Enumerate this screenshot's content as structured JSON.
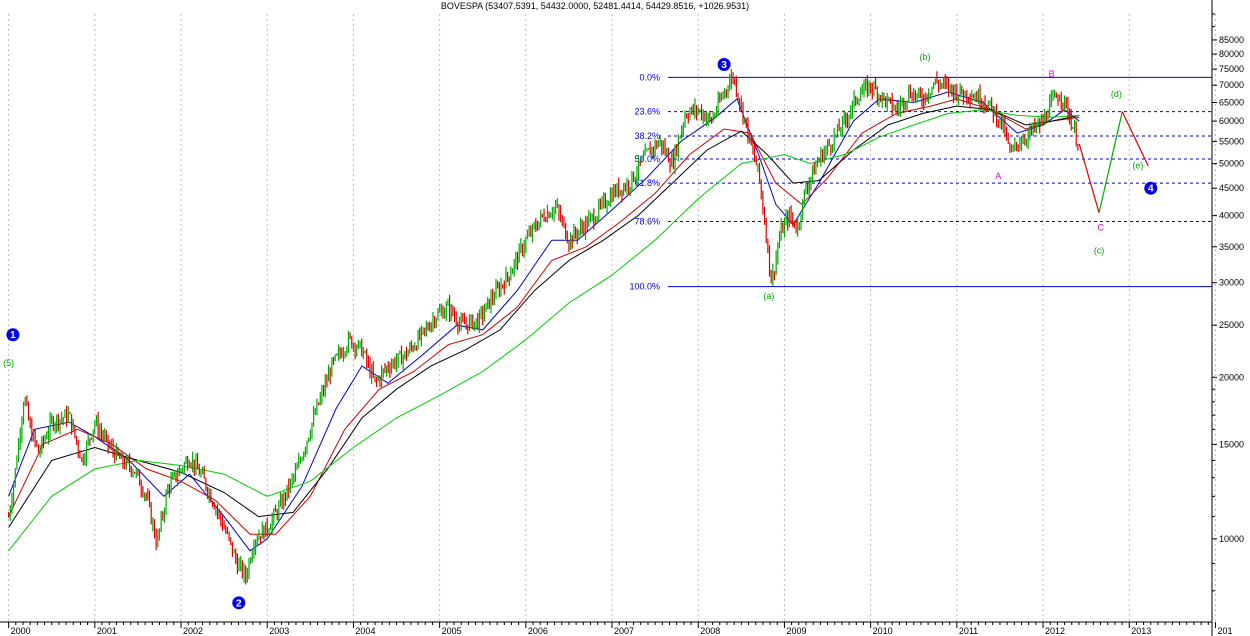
{
  "chart_data": {
    "type": "line",
    "title": "BOVESPA (53407.5391, 54432.0000, 52481.4414, 54429.8516, +1026.9531)",
    "y_scale": "log",
    "ylim": [
      7000,
      95000
    ],
    "y_ticks": [
      10000,
      15000,
      20000,
      25000,
      30000,
      35000,
      40000,
      45000,
      50000,
      55000,
      60000,
      65000,
      70000,
      75000,
      80000,
      85000
    ],
    "y_tick_labels": [
      "10000",
      "15000",
      "20000",
      "25000",
      "30000",
      "35000",
      "40000",
      "45000",
      "50000",
      "55000",
      "60000",
      "65000",
      "70000",
      "75000",
      "80000",
      "85000"
    ],
    "xlim": [
      1999.9,
      2013.96
    ],
    "x_ticks": [
      "2000",
      "2001",
      "2002",
      "2003",
      "2004",
      "2005",
      "2006",
      "2007",
      "2008",
      "2009",
      "2010",
      "2011",
      "2012",
      "2013",
      "2014"
    ],
    "x_tick_labels": [
      "2000",
      "2001",
      "2002",
      "2003",
      "2004",
      "2005",
      "2006",
      "2007",
      "2008",
      "2009",
      "2010",
      "2011",
      "2012",
      "2013",
      "201"
    ],
    "grid": true,
    "price_path": [
      [
        2000.0,
        11000
      ],
      [
        2000.08,
        13500
      ],
      [
        2000.18,
        18500
      ],
      [
        2000.25,
        16000
      ],
      [
        2000.35,
        14500
      ],
      [
        2000.5,
        16500
      ],
      [
        2000.7,
        17000
      ],
      [
        2000.85,
        14000
      ],
      [
        2001.0,
        16500
      ],
      [
        2001.15,
        15000
      ],
      [
        2001.3,
        14000
      ],
      [
        2001.45,
        13500
      ],
      [
        2001.6,
        12000
      ],
      [
        2001.72,
        9800
      ],
      [
        2001.85,
        12500
      ],
      [
        2002.0,
        13500
      ],
      [
        2002.1,
        14200
      ],
      [
        2002.25,
        13000
      ],
      [
        2002.4,
        11500
      ],
      [
        2002.55,
        10000
      ],
      [
        2002.65,
        9000
      ],
      [
        2002.75,
        8500
      ],
      [
        2002.85,
        10000
      ],
      [
        2003.0,
        10500
      ],
      [
        2003.15,
        11500
      ],
      [
        2003.35,
        13500
      ],
      [
        2003.55,
        17000
      ],
      [
        2003.75,
        21000
      ],
      [
        2003.95,
        23500
      ],
      [
        2004.1,
        22500
      ],
      [
        2004.25,
        19500
      ],
      [
        2004.4,
        21000
      ],
      [
        2004.6,
        22000
      ],
      [
        2004.8,
        24000
      ],
      [
        2004.95,
        26000
      ],
      [
        2005.1,
        27000
      ],
      [
        2005.25,
        25000
      ],
      [
        2005.45,
        25500
      ],
      [
        2005.6,
        28000
      ],
      [
        2005.8,
        31000
      ],
      [
        2006.0,
        36000
      ],
      [
        2006.2,
        40000
      ],
      [
        2006.35,
        41500
      ],
      [
        2006.5,
        36000
      ],
      [
        2006.65,
        38000
      ],
      [
        2006.8,
        40000
      ],
      [
        2007.0,
        44000
      ],
      [
        2007.2,
        46000
      ],
      [
        2007.4,
        52000
      ],
      [
        2007.55,
        55000
      ],
      [
        2007.7,
        50000
      ],
      [
        2007.85,
        62000
      ],
      [
        2008.0,
        63000
      ],
      [
        2008.15,
        60000
      ],
      [
        2008.3,
        68000
      ],
      [
        2008.4,
        73000
      ],
      [
        2008.5,
        64000
      ],
      [
        2008.6,
        55000
      ],
      [
        2008.7,
        48000
      ],
      [
        2008.78,
        38000
      ],
      [
        2008.85,
        30000
      ],
      [
        2008.95,
        37000
      ],
      [
        2009.05,
        40000
      ],
      [
        2009.15,
        38000
      ],
      [
        2009.25,
        45000
      ],
      [
        2009.4,
        51000
      ],
      [
        2009.55,
        55000
      ],
      [
        2009.7,
        60000
      ],
      [
        2009.85,
        67000
      ],
      [
        2010.0,
        70000
      ],
      [
        2010.15,
        66000
      ],
      [
        2010.3,
        63000
      ],
      [
        2010.45,
        68000
      ],
      [
        2010.6,
        66000
      ],
      [
        2010.75,
        71000
      ],
      [
        2010.85,
        70000
      ],
      [
        2011.0,
        68000
      ],
      [
        2011.15,
        67500
      ],
      [
        2011.3,
        66000
      ],
      [
        2011.45,
        62000
      ],
      [
        2011.55,
        58000
      ],
      [
        2011.62,
        52000
      ],
      [
        2011.72,
        55000
      ],
      [
        2011.85,
        57000
      ],
      [
        2012.0,
        60000
      ],
      [
        2012.1,
        65000
      ],
      [
        2012.2,
        67500
      ],
      [
        2012.3,
        62000
      ],
      [
        2012.38,
        56000
      ],
      [
        2012.42,
        54430
      ]
    ],
    "series": [
      {
        "color": "#0000cc",
        "values": [
          [
            2000.0,
            12000
          ],
          [
            2000.3,
            16000
          ],
          [
            2000.7,
            16500
          ],
          [
            2001.0,
            15500
          ],
          [
            2001.4,
            14000
          ],
          [
            2001.8,
            12000
          ],
          [
            2002.1,
            13200
          ],
          [
            2002.5,
            11000
          ],
          [
            2002.8,
            9500
          ],
          [
            2003.0,
            10000
          ],
          [
            2003.4,
            12500
          ],
          [
            2003.8,
            17500
          ],
          [
            2004.1,
            21000
          ],
          [
            2004.4,
            19500
          ],
          [
            2004.8,
            22000
          ],
          [
            2005.2,
            25000
          ],
          [
            2005.5,
            24500
          ],
          [
            2005.9,
            29000
          ],
          [
            2006.3,
            36000
          ],
          [
            2006.6,
            36000
          ],
          [
            2007.0,
            41000
          ],
          [
            2007.4,
            47000
          ],
          [
            2007.8,
            55000
          ],
          [
            2008.2,
            61000
          ],
          [
            2008.45,
            66000
          ],
          [
            2008.7,
            52000
          ],
          [
            2008.9,
            42000
          ],
          [
            2009.1,
            38500
          ],
          [
            2009.4,
            46000
          ],
          [
            2009.8,
            60000
          ],
          [
            2010.1,
            66000
          ],
          [
            2010.5,
            65000
          ],
          [
            2010.9,
            68000
          ],
          [
            2011.3,
            65000
          ],
          [
            2011.7,
            57000
          ],
          [
            2012.0,
            59000
          ],
          [
            2012.25,
            63000
          ],
          [
            2012.42,
            60000
          ]
        ]
      },
      {
        "color": "#cc0000",
        "values": [
          [
            2000.0,
            11000
          ],
          [
            2000.4,
            15000
          ],
          [
            2000.8,
            16000
          ],
          [
            2001.2,
            15000
          ],
          [
            2001.6,
            13500
          ],
          [
            2002.0,
            12800
          ],
          [
            2002.4,
            11800
          ],
          [
            2002.8,
            10200
          ],
          [
            2003.1,
            10200
          ],
          [
            2003.5,
            12000
          ],
          [
            2003.9,
            16000
          ],
          [
            2004.3,
            19000
          ],
          [
            2004.7,
            20500
          ],
          [
            2005.1,
            23000
          ],
          [
            2005.5,
            24000
          ],
          [
            2005.9,
            27000
          ],
          [
            2006.3,
            33000
          ],
          [
            2006.7,
            35000
          ],
          [
            2007.1,
            39000
          ],
          [
            2007.5,
            44000
          ],
          [
            2007.9,
            52000
          ],
          [
            2008.3,
            58000
          ],
          [
            2008.6,
            57000
          ],
          [
            2008.9,
            46000
          ],
          [
            2009.2,
            42000
          ],
          [
            2009.5,
            47000
          ],
          [
            2009.9,
            57000
          ],
          [
            2010.3,
            62000
          ],
          [
            2010.7,
            64000
          ],
          [
            2011.0,
            66000
          ],
          [
            2011.4,
            63000
          ],
          [
            2011.8,
            58000
          ],
          [
            2012.1,
            60000
          ],
          [
            2012.42,
            61000
          ]
        ]
      },
      {
        "color": "#000000",
        "values": [
          [
            2000.0,
            10500
          ],
          [
            2000.5,
            14000
          ],
          [
            2001.0,
            14800
          ],
          [
            2001.5,
            14000
          ],
          [
            2002.0,
            13300
          ],
          [
            2002.5,
            12200
          ],
          [
            2002.9,
            11000
          ],
          [
            2003.3,
            11200
          ],
          [
            2003.7,
            13500
          ],
          [
            2004.1,
            16800
          ],
          [
            2004.5,
            19000
          ],
          [
            2004.9,
            21000
          ],
          [
            2005.3,
            22500
          ],
          [
            2005.7,
            24500
          ],
          [
            2006.1,
            29000
          ],
          [
            2006.5,
            33000
          ],
          [
            2006.9,
            36000
          ],
          [
            2007.3,
            40000
          ],
          [
            2007.7,
            46000
          ],
          [
            2008.1,
            53000
          ],
          [
            2008.5,
            57500
          ],
          [
            2008.8,
            52000
          ],
          [
            2009.1,
            46000
          ],
          [
            2009.4,
            46500
          ],
          [
            2009.8,
            53000
          ],
          [
            2010.2,
            59000
          ],
          [
            2010.6,
            62000
          ],
          [
            2011.0,
            64000
          ],
          [
            2011.4,
            63000
          ],
          [
            2011.8,
            59000
          ],
          [
            2012.1,
            60000
          ],
          [
            2012.42,
            61500
          ]
        ]
      },
      {
        "color": "#00cc00",
        "values": [
          [
            2000.0,
            9500
          ],
          [
            2000.5,
            12000
          ],
          [
            2001.0,
            13500
          ],
          [
            2001.5,
            14000
          ],
          [
            2002.0,
            13700
          ],
          [
            2002.5,
            13200
          ],
          [
            2003.0,
            12000
          ],
          [
            2003.5,
            12800
          ],
          [
            2004.0,
            14800
          ],
          [
            2004.5,
            16800
          ],
          [
            2005.0,
            18500
          ],
          [
            2005.5,
            20500
          ],
          [
            2006.0,
            23500
          ],
          [
            2006.5,
            27500
          ],
          [
            2007.0,
            31000
          ],
          [
            2007.5,
            36000
          ],
          [
            2008.0,
            43000
          ],
          [
            2008.5,
            50000
          ],
          [
            2009.0,
            52000
          ],
          [
            2009.3,
            50000
          ],
          [
            2009.7,
            52000
          ],
          [
            2010.1,
            56000
          ],
          [
            2010.5,
            59000
          ],
          [
            2010.9,
            62000
          ],
          [
            2011.3,
            63000
          ],
          [
            2011.7,
            61500
          ],
          [
            2012.1,
            61000
          ],
          [
            2012.42,
            61500
          ]
        ]
      }
    ],
    "fibonacci": {
      "levels": [
        {
          "label": "0.0%",
          "value": 72400
        },
        {
          "label": "23.6%",
          "value": 62500
        },
        {
          "label": "38.2%",
          "value": 56300
        },
        {
          "label": "50.0%",
          "value": 51000
        },
        {
          "label": "61.8%",
          "value": 46000
        },
        {
          "label": "78.6%",
          "value": 39000
        },
        {
          "label": "100.0%",
          "value": 29500
        }
      ],
      "x_start": 2007.55
    },
    "projection": [
      {
        "color": "#dd0000",
        "points": [
          [
            2012.42,
            54430
          ],
          [
            2012.65,
            40500
          ]
        ]
      },
      {
        "color": "#00aa00",
        "points": [
          [
            2012.65,
            40500
          ],
          [
            2012.92,
            62500
          ]
        ]
      },
      {
        "color": "#dd0000",
        "points": [
          [
            2012.92,
            62500
          ],
          [
            2013.22,
            49500
          ]
        ]
      }
    ],
    "wave_labels": [
      {
        "text": "(5)",
        "x": 2000.0,
        "y": 21000,
        "color": "#00aa00"
      },
      {
        "text": "(a)",
        "x": 2008.82,
        "y": 28000,
        "color": "#00aa00"
      },
      {
        "text": "(b)",
        "x": 2010.63,
        "y": 78000,
        "color": "#00aa00"
      },
      {
        "text": "(c)",
        "x": 2012.65,
        "y": 34000,
        "color": "#00aa00"
      },
      {
        "text": "(d)",
        "x": 2012.85,
        "y": 66500,
        "color": "#00aa00"
      },
      {
        "text": "(e)",
        "x": 2013.1,
        "y": 49000,
        "color": "#00aa00"
      },
      {
        "text": "A",
        "x": 2011.48,
        "y": 46800,
        "color": "#dd00dd"
      },
      {
        "text": "B",
        "x": 2012.1,
        "y": 72500,
        "color": "#dd00dd"
      },
      {
        "text": "C",
        "x": 2012.67,
        "y": 37500,
        "color": "#dd00dd"
      }
    ],
    "big_waves": [
      {
        "text": "1",
        "x": 2000.05,
        "y": 24000
      },
      {
        "text": "2",
        "x": 2002.67,
        "y": 7600
      },
      {
        "text": "3",
        "x": 2008.3,
        "y": 76500
      },
      {
        "text": "4",
        "x": 2013.25,
        "y": 45000
      }
    ]
  }
}
